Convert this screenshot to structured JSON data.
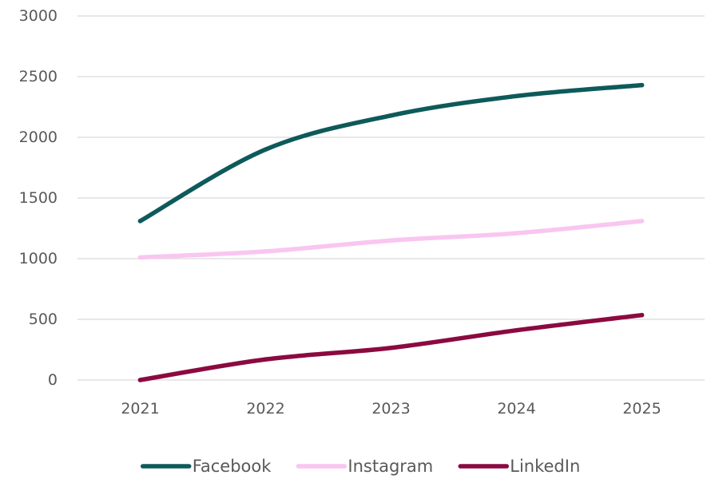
{
  "chart_data": {
    "type": "line",
    "title": "",
    "xlabel": "",
    "ylabel": "",
    "categories": [
      "2021",
      "2022",
      "2023",
      "2024",
      "2025"
    ],
    "ylim": [
      0,
      3000
    ],
    "yticks": [
      "0",
      "500",
      "1000",
      "1500",
      "2000",
      "2500",
      "3000"
    ],
    "grid": true,
    "legend": "bottom",
    "smooth": true,
    "series": [
      {
        "name": "Facebook",
        "color": "#0E5A5A",
        "values": [
          1310,
          1900,
          2180,
          2340,
          2430
        ]
      },
      {
        "name": "Instagram",
        "color": "#F9C6F0",
        "values": [
          1010,
          1060,
          1150,
          1210,
          1310
        ]
      },
      {
        "name": "LinkedIn",
        "color": "#8B0A40",
        "values": [
          0,
          170,
          265,
          410,
          535
        ]
      }
    ]
  }
}
